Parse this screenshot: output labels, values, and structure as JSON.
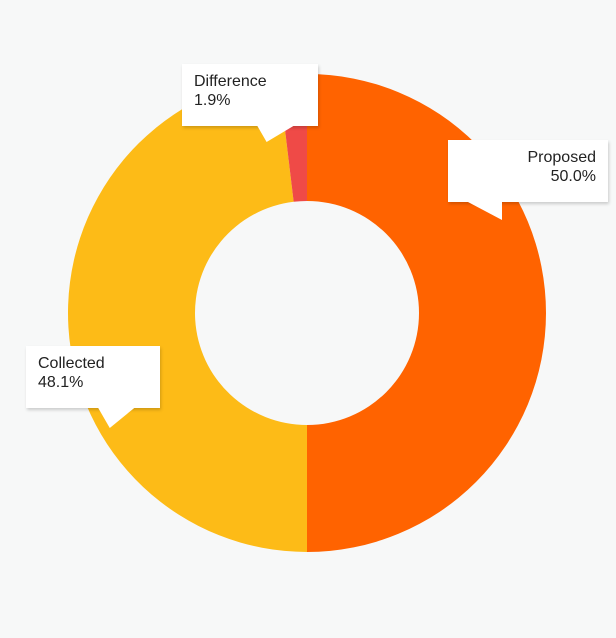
{
  "chart_data": {
    "type": "pie",
    "donut": true,
    "title": "",
    "legend": "none",
    "slices": [
      {
        "label": "Proposed",
        "value": 50.0,
        "display": "50.0%",
        "color": "#ff6300"
      },
      {
        "label": "Collected",
        "value": 48.1,
        "display": "48.1%",
        "color": "#fdbb17"
      },
      {
        "label": "Difference",
        "value": 1.9,
        "display": "1.9%",
        "color": "#ef4a47"
      }
    ]
  }
}
